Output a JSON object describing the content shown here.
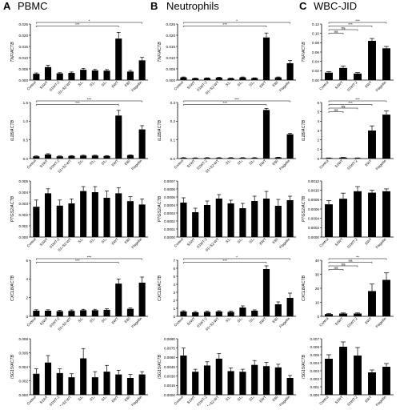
{
  "columns": [
    {
      "letter": "A",
      "title": "PBMC"
    },
    {
      "letter": "B",
      "title": "Neutrophils"
    },
    {
      "letter": "C",
      "title": "WBC-JID"
    }
  ],
  "styles": {
    "bar_color": "#000000",
    "axis_color": "#000000",
    "background": "#ffffff"
  },
  "chart_data": [
    {
      "id": "A1",
      "type": "bar",
      "ylabel": "TNF/ACTB",
      "categories": [
        "Control",
        "S1WT",
        "S1WT-2",
        "S1+S2-WT",
        "S1₁",
        "S1₃",
        "S1₀",
        "EWT",
        "E80",
        "Flagellin"
      ],
      "values": [
        0.0028,
        0.0058,
        0.003,
        0.0032,
        0.0046,
        0.0043,
        0.0042,
        0.0185,
        0.0038,
        0.0088
      ],
      "errors": [
        0.0004,
        0.0008,
        0.0003,
        0.0004,
        0.0006,
        0.0005,
        0.0005,
        0.0028,
        0.0005,
        0.0013
      ],
      "ylim": [
        0,
        0.025
      ],
      "yticks": [
        "0.000",
        "0.005",
        "0.010",
        "0.015",
        "0.020",
        "0.025"
      ],
      "significance": [
        {
          "from": 0,
          "to": 9,
          "label": "*"
        },
        {
          "from": 0,
          "to": 7,
          "label": "***"
        }
      ]
    },
    {
      "id": "A2",
      "type": "bar",
      "ylabel": "IL1B/ACTB",
      "categories": [
        "Control",
        "S1WT",
        "S1WT-2",
        "S1+S2-WT",
        "S1₁",
        "S1₃",
        "S1₀",
        "EWT",
        "E80",
        "Flagellin"
      ],
      "values": [
        0.06,
        0.11,
        0.06,
        0.07,
        0.08,
        0.08,
        0.07,
        1.15,
        0.09,
        0.78
      ],
      "errors": [
        0.01,
        0.02,
        0.01,
        0.01,
        0.01,
        0.01,
        0.01,
        0.14,
        0.01,
        0.1
      ],
      "ylim": [
        0,
        1.5
      ],
      "yticks": [
        "0.0",
        "0.5",
        "1.0",
        "1.5"
      ],
      "significance": [
        {
          "from": 0,
          "to": 9,
          "label": "***"
        },
        {
          "from": 0,
          "to": 7,
          "label": "***"
        }
      ]
    },
    {
      "id": "A3",
      "type": "bar",
      "ylabel": "PTGS2/ACTB",
      "categories": [
        "Control",
        "S1WT",
        "S1WT-2",
        "S1+S2-WT",
        "S1₁",
        "S1₃",
        "S1₀",
        "EWT",
        "E80",
        "Flagellin"
      ],
      "values": [
        0.0027,
        0.0039,
        0.0028,
        0.003,
        0.0041,
        0.004,
        0.0035,
        0.0039,
        0.0032,
        0.0029
      ],
      "errors": [
        0.0006,
        0.0004,
        0.0005,
        0.0004,
        0.0004,
        0.0005,
        0.0006,
        0.0005,
        0.0004,
        0.0005
      ],
      "ylim": [
        0,
        0.005
      ],
      "yticks": [
        "0.000",
        "0.001",
        "0.002",
        "0.003",
        "0.004",
        "0.005"
      ],
      "significance": []
    },
    {
      "id": "A4",
      "type": "bar",
      "ylabel": "CXCL8/ACTB",
      "categories": [
        "Control",
        "S1WT",
        "S1WT-2",
        "S1+S2-WT",
        "S1₁",
        "S1₃",
        "S1₀",
        "EWT",
        "E80",
        "Flagellin"
      ],
      "values": [
        0.6,
        0.6,
        0.55,
        0.58,
        0.65,
        0.65,
        0.7,
        3.5,
        0.8,
        3.6
      ],
      "errors": [
        0.1,
        0.1,
        0.1,
        0.1,
        0.1,
        0.1,
        0.1,
        0.5,
        0.1,
        0.6
      ],
      "ylim": [
        0,
        6
      ],
      "yticks": [
        "0",
        "2",
        "4",
        "6"
      ],
      "significance": [
        {
          "from": 0,
          "to": 9,
          "label": "***"
        },
        {
          "from": 0,
          "to": 7,
          "label": "***"
        }
      ]
    },
    {
      "id": "A5",
      "type": "bar",
      "ylabel": "ISG15/ACTB",
      "categories": [
        "Control",
        "S1WT",
        "S1WT-2",
        "S1+S2-WT",
        "S1₁",
        "S1₃",
        "S1₀",
        "EWT",
        "E80",
        "Flagellin"
      ],
      "values": [
        0.003,
        0.0046,
        0.0031,
        0.0025,
        0.0052,
        0.0025,
        0.0033,
        0.0029,
        0.0024,
        0.0029
      ],
      "errors": [
        0.0007,
        0.001,
        0.0006,
        0.0005,
        0.0014,
        0.0008,
        0.0009,
        0.0006,
        0.0005,
        0.0004
      ],
      "ylim": [
        0,
        0.008
      ],
      "yticks": [
        "0.000",
        "0.002",
        "0.004",
        "0.006",
        "0.008"
      ],
      "significance": []
    },
    {
      "id": "B1",
      "type": "bar",
      "ylabel": "TNF/ACTB",
      "categories": [
        "Control",
        "S1WT",
        "S1WT-2",
        "S1+S2-WT",
        "S1₁",
        "S1₃",
        "S1₀",
        "EWT",
        "E80",
        "Flagellin"
      ],
      "values": [
        0.0012,
        0.0008,
        0.0009,
        0.0011,
        0.0008,
        0.0012,
        0.0009,
        0.019,
        0.0012,
        0.0075
      ],
      "errors": [
        0.0002,
        0.0001,
        0.0001,
        0.0002,
        0.0001,
        0.0002,
        0.0001,
        0.002,
        0.0002,
        0.0012
      ],
      "ylim": [
        0,
        0.025
      ],
      "yticks": [
        "0.000",
        "0.005",
        "0.010",
        "0.015",
        "0.020",
        "0.025"
      ],
      "significance": [
        {
          "from": 0,
          "to": 9,
          "label": "*"
        },
        {
          "from": 0,
          "to": 7,
          "label": "***"
        }
      ]
    },
    {
      "id": "B2",
      "type": "bar",
      "ylabel": "IL1B/ACTB",
      "categories": [
        "Control",
        "S1WT",
        "S1WT-2",
        "S1+S2-WT",
        "S1₁",
        "S1₃",
        "S1₀",
        "EWT",
        "E80",
        "Flagellin"
      ],
      "values": [
        0.004,
        0.003,
        0.004,
        0.004,
        0.004,
        0.004,
        0.004,
        0.26,
        0.006,
        0.13
      ],
      "errors": [
        0.001,
        0.001,
        0.001,
        0.001,
        0.001,
        0.001,
        0.001,
        0.008,
        0.001,
        0.005
      ],
      "ylim": [
        0,
        0.3
      ],
      "yticks": [
        "0.0",
        "0.1",
        "0.2",
        "0.3"
      ],
      "significance": [
        {
          "from": 0,
          "to": 9,
          "label": "***"
        },
        {
          "from": 0,
          "to": 7,
          "label": "***"
        }
      ]
    },
    {
      "id": "B3",
      "type": "bar",
      "ylabel": "PTGS2/ACTB",
      "categories": [
        "Control",
        "S1WT",
        "S1WT-2",
        "S1+S2-WT",
        "S1₁",
        "S1₃",
        "S1₀",
        "EWT",
        "E80",
        "Flagellin"
      ],
      "values": [
        0.00043,
        0.00031,
        0.0004,
        0.00048,
        0.00042,
        0.00036,
        0.00045,
        0.00048,
        0.00039,
        0.00046
      ],
      "errors": [
        6e-05,
        5e-05,
        5e-05,
        5e-05,
        4e-05,
        6e-05,
        6e-05,
        9e-05,
        8e-05,
        5e-05
      ],
      "ylim": [
        0,
        0.0007
      ],
      "yticks": [
        "0.0000",
        "0.0001",
        "0.0002",
        "0.0003",
        "0.0004",
        "0.0005",
        "0.0006",
        "0.0007"
      ],
      "significance": []
    },
    {
      "id": "B4",
      "type": "bar",
      "ylabel": "CXCL8/ACTB",
      "categories": [
        "Control",
        "S1WT",
        "S1WT-2",
        "S1+S2-WT",
        "S1₁",
        "S1₃",
        "S1₀",
        "EWT",
        "E80",
        "Flagellin"
      ],
      "values": [
        0.6,
        0.5,
        0.55,
        0.6,
        0.55,
        1.1,
        0.7,
        5.9,
        1.5,
        2.3
      ],
      "errors": [
        0.1,
        0.1,
        0.1,
        0.1,
        0.1,
        0.2,
        0.1,
        0.4,
        0.3,
        0.6
      ],
      "ylim": [
        0,
        7
      ],
      "yticks": [
        "0",
        "1",
        "2",
        "3",
        "4",
        "5",
        "6",
        "7"
      ],
      "significance": [
        {
          "from": 0,
          "to": 9,
          "label": "*"
        },
        {
          "from": 0,
          "to": 7,
          "label": "***"
        }
      ]
    },
    {
      "id": "B5",
      "type": "bar",
      "ylabel": "ISG15/ACTB",
      "categories": [
        "Control",
        "S1WT",
        "S1WT-2",
        "S1+S2-WT",
        "S1₁",
        "S1₃",
        "S1₀",
        "EWT",
        "E80",
        "Flagellin"
      ],
      "values": [
        0.0063,
        0.0037,
        0.0047,
        0.0058,
        0.0038,
        0.0037,
        0.0048,
        0.0046,
        0.0044,
        0.0027
      ],
      "errors": [
        0.0012,
        0.0004,
        0.0006,
        0.0008,
        0.0005,
        0.0004,
        0.0007,
        0.0006,
        0.0005,
        0.0004
      ],
      "ylim": [
        0,
        0.009
      ],
      "yticks": [
        "0.0000",
        "0.0015",
        "0.0030",
        "0.0045",
        "0.0060",
        "0.0075",
        "0.0090"
      ],
      "significance": []
    },
    {
      "id": "C1",
      "type": "bar",
      "ylabel": "TNF/ACTB",
      "categories": [
        "Control",
        "S1WT",
        "S1WT-2",
        "EWT",
        "Flagellin"
      ],
      "values": [
        0.016,
        0.026,
        0.014,
        0.084,
        0.068
      ],
      "errors": [
        0.002,
        0.004,
        0.002,
        0.005,
        0.004
      ],
      "ylim": [
        0,
        0.12
      ],
      "yticks": [
        "0.00",
        "0.02",
        "0.04",
        "0.06",
        "0.08",
        "0.10",
        "0.12"
      ],
      "significance": [
        {
          "from": 0,
          "to": 4,
          "label": "***"
        },
        {
          "from": 0,
          "to": 3,
          "label": "***"
        },
        {
          "from": 0,
          "to": 2,
          "label": "ns"
        },
        {
          "from": 0,
          "to": 1,
          "label": "ns"
        }
      ]
    },
    {
      "id": "C2",
      "type": "bar",
      "ylabel": "IL1B/ACTB",
      "categories": [
        "Control",
        "S1WT",
        "S1WT-2",
        "EWT",
        "Flagellin"
      ],
      "values": [
        0.05,
        0.1,
        0.05,
        3.0,
        4.7
      ],
      "errors": [
        0.02,
        0.03,
        0.02,
        0.5,
        0.4
      ],
      "ylim": [
        0,
        6
      ],
      "yticks": [
        "0",
        "1",
        "2",
        "3",
        "4",
        "5",
        "6"
      ],
      "significance": [
        {
          "from": 0,
          "to": 4,
          "label": "***"
        },
        {
          "from": 0,
          "to": 3,
          "label": "***"
        },
        {
          "from": 0,
          "to": 2,
          "label": "ns"
        },
        {
          "from": 0,
          "to": 1,
          "label": "ns"
        }
      ]
    },
    {
      "id": "C3",
      "type": "bar",
      "ylabel": "PTGS2/ACTB",
      "categories": [
        "Control",
        "S1WT",
        "S1WT-2",
        "EWT",
        "Flagellin"
      ],
      "values": [
        0.0007,
        0.00082,
        0.00098,
        0.00095,
        0.00098
      ],
      "errors": [
        8e-05,
        0.00012,
        0.0001,
        5e-05,
        5e-05
      ],
      "ylim": [
        0,
        0.0012
      ],
      "yticks": [
        "0.0000",
        "0.0002",
        "0.0004",
        "0.0006",
        "0.0008",
        "0.0010",
        "0.0012"
      ],
      "significance": []
    },
    {
      "id": "C4",
      "type": "bar",
      "ylabel": "CXCL8/ACTB",
      "categories": [
        "Control",
        "S1WT",
        "S1WT-2",
        "EWT",
        "Flagellin"
      ],
      "values": [
        1.6,
        2,
        2,
        18,
        26
      ],
      "errors": [
        0.3,
        0.4,
        0.4,
        5,
        5
      ],
      "ylim": [
        0,
        40
      ],
      "yticks": [
        "0",
        "10",
        "20",
        "30",
        "40"
      ],
      "significance": [
        {
          "from": 0,
          "to": 4,
          "label": "**"
        },
        {
          "from": 0,
          "to": 3,
          "label": "ns"
        },
        {
          "from": 0,
          "to": 2,
          "label": "ns"
        },
        {
          "from": 0,
          "to": 1,
          "label": "ns"
        }
      ]
    },
    {
      "id": "C5",
      "type": "bar",
      "ylabel": "ISG15/ACTB",
      "categories": [
        "Control",
        "S1WT",
        "S1WT-2",
        "EWT",
        "Flagellin"
      ],
      "values": [
        0.0045,
        0.006,
        0.0049,
        0.0028,
        0.0035
      ],
      "errors": [
        0.0005,
        0.0006,
        0.001,
        0.0003,
        0.0004
      ],
      "ylim": [
        0,
        0.007
      ],
      "yticks": [
        "0.000",
        "0.001",
        "0.002",
        "0.003",
        "0.004",
        "0.005",
        "0.006",
        "0.007"
      ],
      "significance": []
    }
  ]
}
